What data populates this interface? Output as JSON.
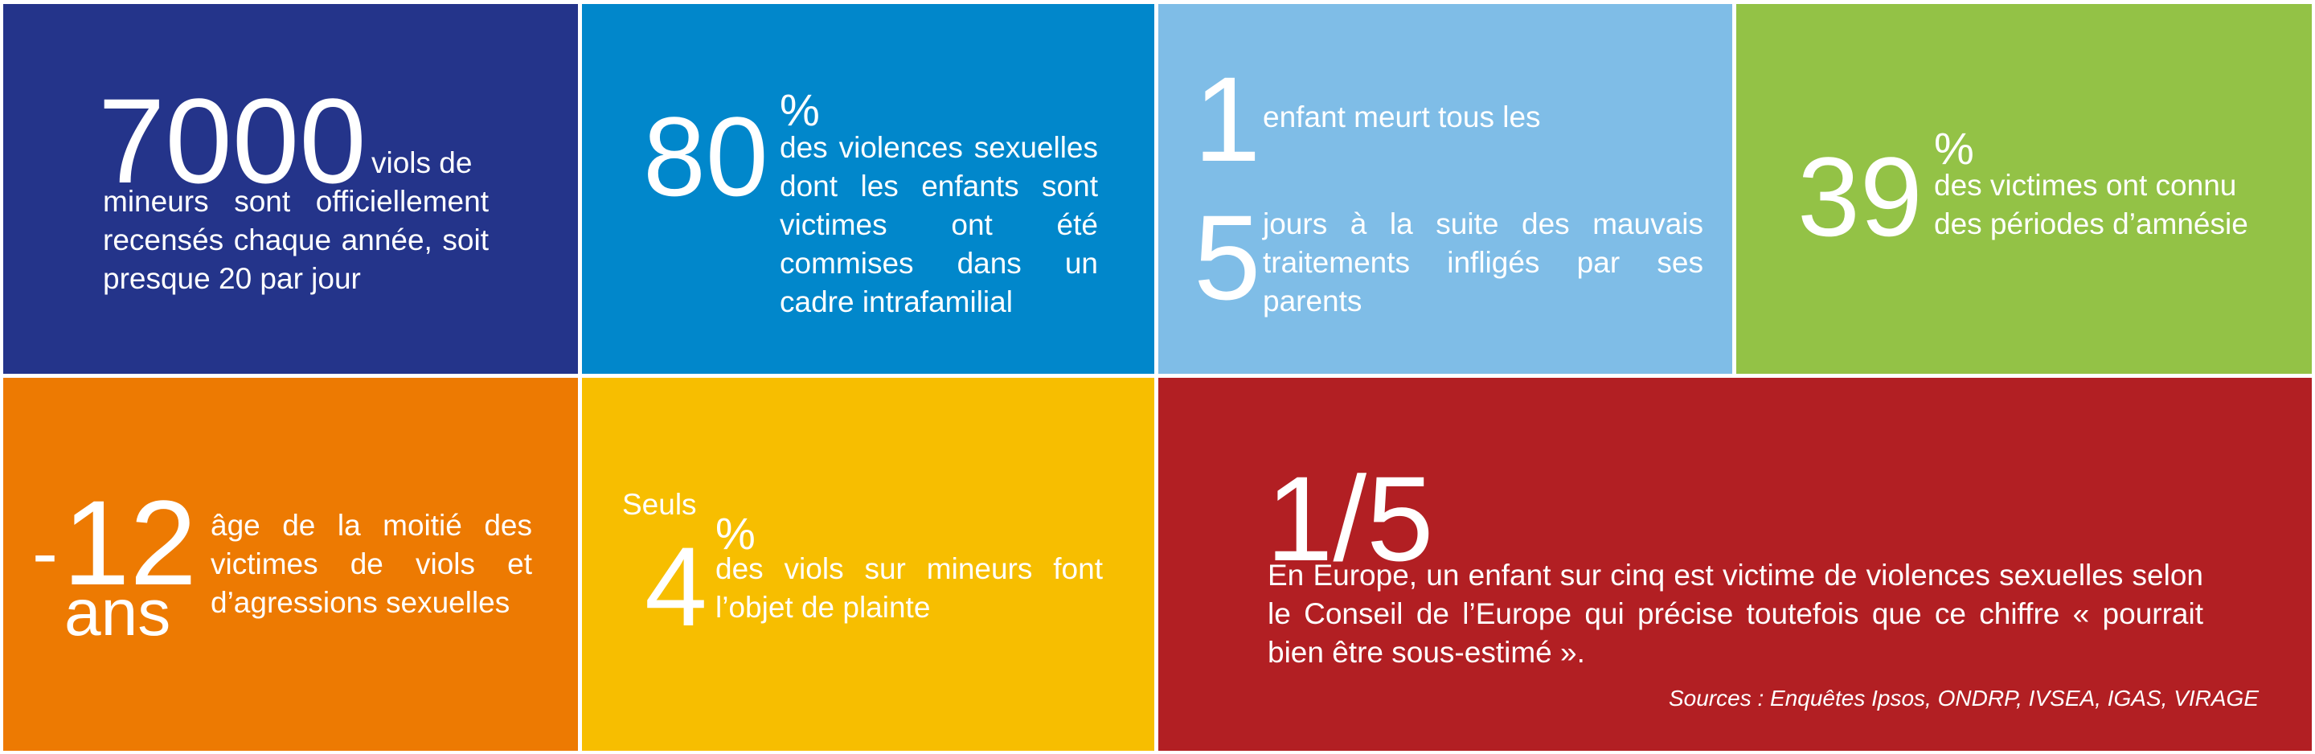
{
  "colors": {
    "navy": "#24348A",
    "blue": "#0187CB",
    "light_blue": "#7FBDE7",
    "green": "#93C246",
    "orange": "#ED7A02",
    "yellow": "#F7BE00",
    "red": "#B21F23"
  },
  "tiles": {
    "viols_mineurs": {
      "number": "7000",
      "lead": "viols de",
      "text": "mineurs sont officiellement recensés chaque année, soit presque 20 par jour"
    },
    "cadre_intrafamilial": {
      "number": "80",
      "percent": "%",
      "text": "des violences sexuelles dont les enfants sont victimes ont été commises dans un cadre intrafamilial"
    },
    "enfant_meurt": {
      "number_1": "1",
      "text_1": "enfant meurt tous les",
      "number_2": "5",
      "text_2": "jours à la suite des mauvais traitements infligés par ses parents"
    },
    "amnesie": {
      "number": "39",
      "percent": "%",
      "text": "des victimes ont connu des périodes d’amnésie"
    },
    "age_victimes": {
      "prefix": "-",
      "number": "12",
      "unit": "ans",
      "text": "âge de la moitié des victimes de viols et d’agressions sexuelles"
    },
    "plainte": {
      "lead": "Seuls",
      "number": "4",
      "percent": "%",
      "text": "des viols sur mineurs font l’objet de plainte"
    },
    "europe": {
      "number": "1/5",
      "text": "En Europe, un enfant sur cinq est victime de violences sexuelles selon le Conseil de l’Europe qui précise toutefois que ce chiffre « pourrait bien être sous-estimé ».",
      "sources": "Sources : Enquêtes Ipsos, ONDRP, IVSEA, IGAS, VIRAGE"
    }
  }
}
